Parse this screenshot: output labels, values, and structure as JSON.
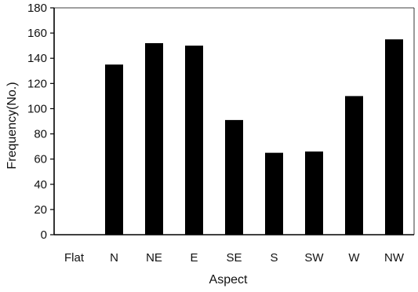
{
  "chart_data": {
    "type": "bar",
    "title": "",
    "xlabel": "Aspect",
    "ylabel": "Frequency(No.)",
    "categories": [
      "Flat",
      "N",
      "NE",
      "E",
      "SE",
      "S",
      "SW",
      "W",
      "NW"
    ],
    "values": [
      0,
      135,
      152,
      150,
      91,
      65,
      66,
      110,
      155
    ],
    "ylim": [
      0,
      180
    ],
    "yticks": [
      0,
      20,
      40,
      60,
      80,
      100,
      120,
      140,
      160,
      180
    ],
    "grid": false,
    "legend": "none",
    "colors": {
      "bar": "#000000",
      "axis": "#000000",
      "text": "#111111",
      "background": "#ffffff"
    }
  }
}
